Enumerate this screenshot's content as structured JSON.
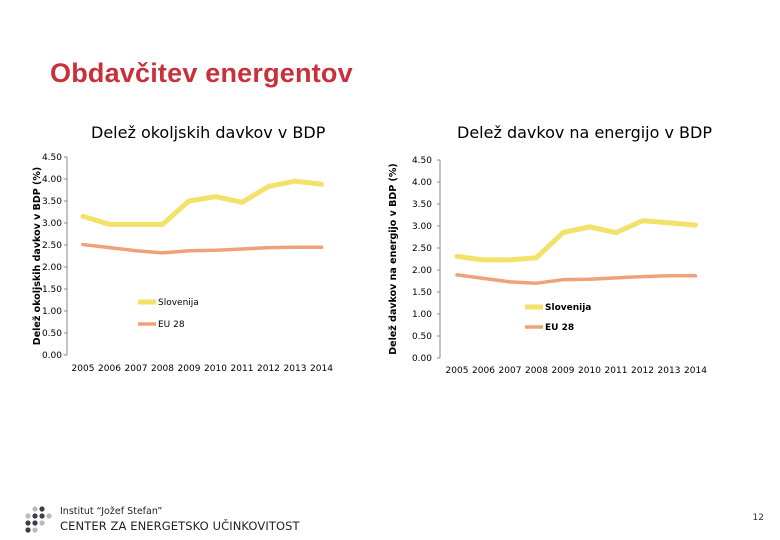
{
  "slide": {
    "title": "Obdavčitev energentov",
    "page_number": "12"
  },
  "footer": {
    "institute": "Institut “Jožef Stefan”",
    "center": "CENTER ZA ENERGETSKO UČINKOVITOST"
  },
  "colors": {
    "title": "#c8303a",
    "slovenija": "#f3e16a",
    "eu28": "#eea27a",
    "axis": "#888888",
    "logo_dark": "#3c3c4c",
    "logo_light": "#b9b9c4"
  },
  "chart_data": [
    {
      "type": "line",
      "title": "Delež okoljskih davkov v BDP",
      "ylabel": "Delež okoljskih davkov v BDP (%)",
      "xlabel": "",
      "x": [
        "2005",
        "2006",
        "2007",
        "2008",
        "2009",
        "2010",
        "2011",
        "2012",
        "2013",
        "2014"
      ],
      "ylim": [
        0,
        4.5
      ],
      "yticks": [
        "0.00",
        "0.50",
        "1.00",
        "1.50",
        "2.00",
        "2.50",
        "3.00",
        "3.50",
        "4.00",
        "4.50"
      ],
      "grid": false,
      "legend_position": "bottom-center",
      "series": [
        {
          "name": "Slovenija",
          "values": [
            3.15,
            2.97,
            2.97,
            2.97,
            3.5,
            3.6,
            3.47,
            3.83,
            3.95,
            3.88
          ]
        },
        {
          "name": "EU 28",
          "values": [
            2.51,
            2.44,
            2.37,
            2.32,
            2.37,
            2.38,
            2.41,
            2.44,
            2.45,
            2.45
          ]
        }
      ]
    },
    {
      "type": "line",
      "title": "Delež davkov na energijo v BDP",
      "ylabel": "Delež davkov na energijo v BDP (%)",
      "xlabel": "",
      "x": [
        "2005",
        "2006",
        "2007",
        "2008",
        "2009",
        "2010",
        "2011",
        "2012",
        "2013",
        "2014"
      ],
      "ylim": [
        0,
        4.5
      ],
      "yticks": [
        "0.00",
        "0.50",
        "1.00",
        "1.50",
        "2.00",
        "2.50",
        "3.00",
        "3.50",
        "4.00",
        "4.50"
      ],
      "grid": false,
      "legend_position": "bottom-right",
      "series": [
        {
          "name": "Slovenija",
          "values": [
            2.31,
            2.23,
            2.23,
            2.28,
            2.85,
            2.98,
            2.85,
            3.12,
            3.07,
            3.02
          ]
        },
        {
          "name": "EU 28",
          "values": [
            1.89,
            1.81,
            1.73,
            1.7,
            1.78,
            1.79,
            1.82,
            1.85,
            1.87,
            1.87
          ]
        }
      ]
    }
  ]
}
